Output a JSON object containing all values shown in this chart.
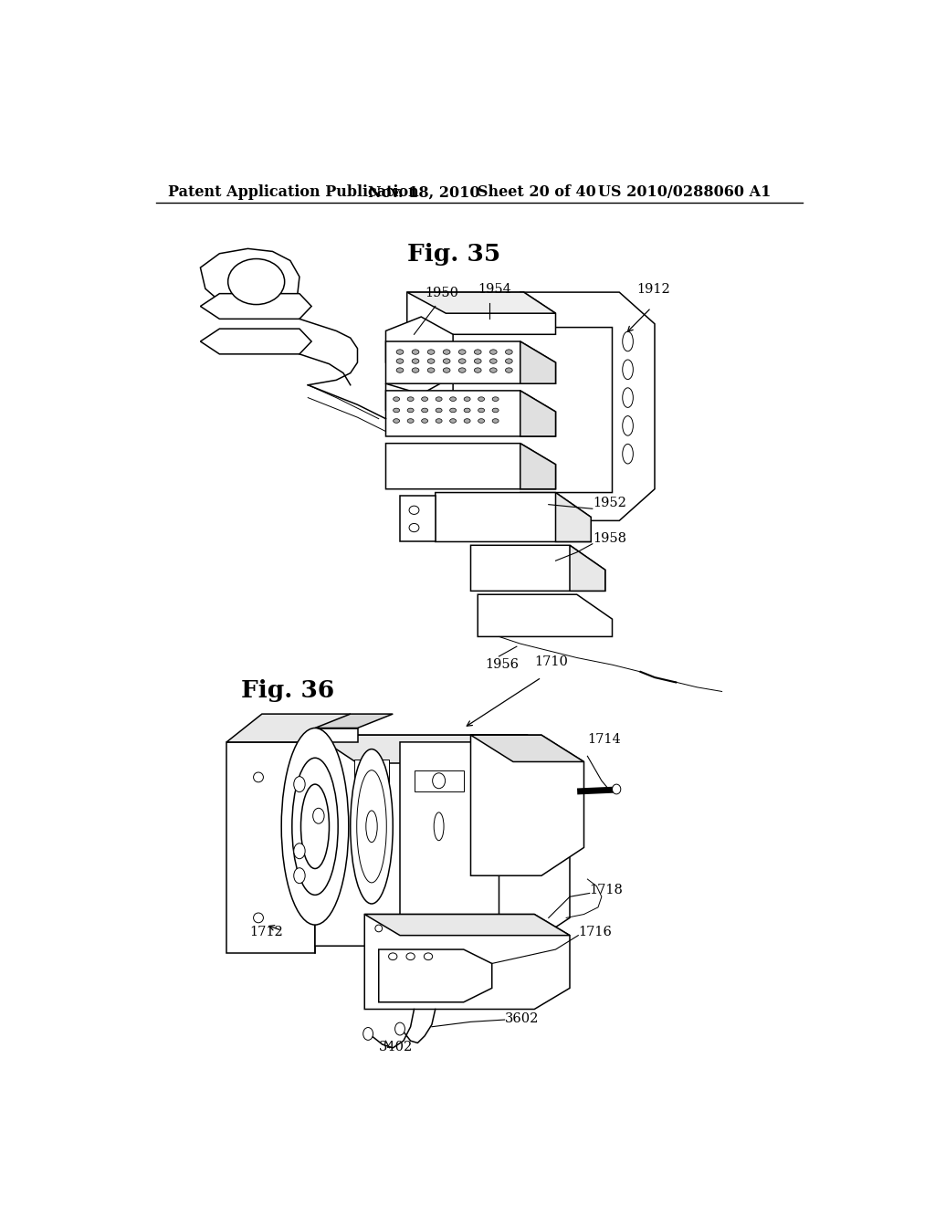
{
  "background_color": "#ffffff",
  "header_text": "Patent Application Publication",
  "header_date": "Nov. 18, 2010",
  "header_sheet": "Sheet 20 of 40",
  "header_patent": "US 2010/0288060 A1",
  "fig35_title": "Fig. 35",
  "fig36_title": "Fig. 36",
  "line_color": "#000000",
  "text_color": "#000000",
  "header_fontsize": 11.5,
  "fig_title_fontsize": 19,
  "label_fontsize": 10.5
}
